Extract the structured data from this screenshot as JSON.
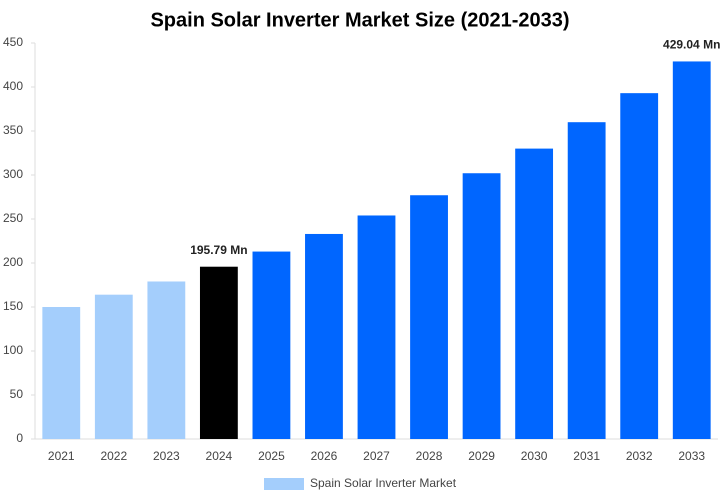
{
  "chart_data": {
    "type": "bar",
    "title": "Spain Solar Inverter Market Size (2021-2033)",
    "categories": [
      "2021",
      "2022",
      "2023",
      "2024",
      "2025",
      "2026",
      "2027",
      "2028",
      "2029",
      "2030",
      "2031",
      "2032",
      "2033"
    ],
    "series": [
      {
        "name": "Spain Solar Inverter Market",
        "color": "#a4cefc",
        "values": [
          150,
          164,
          179,
          195.79,
          213,
          233,
          254,
          277,
          302,
          330,
          360,
          393,
          429.04
        ],
        "value_labels": [
          null,
          null,
          null,
          "195.79 Mn",
          null,
          null,
          null,
          null,
          null,
          null,
          null,
          null,
          "429.04 Mn"
        ],
        "bar_colors": [
          "#a4cefc",
          "#a4cefc",
          "#a4cefc",
          "#000000",
          "#0066ff",
          "#0066ff",
          "#0066ff",
          "#0066ff",
          "#0066ff",
          "#0066ff",
          "#0066ff",
          "#0066ff",
          "#0066ff"
        ]
      }
    ],
    "ylim": [
      0,
      450
    ],
    "yticks": [
      0,
      50,
      100,
      150,
      200,
      250,
      300,
      350,
      400,
      450
    ],
    "grid": false
  }
}
